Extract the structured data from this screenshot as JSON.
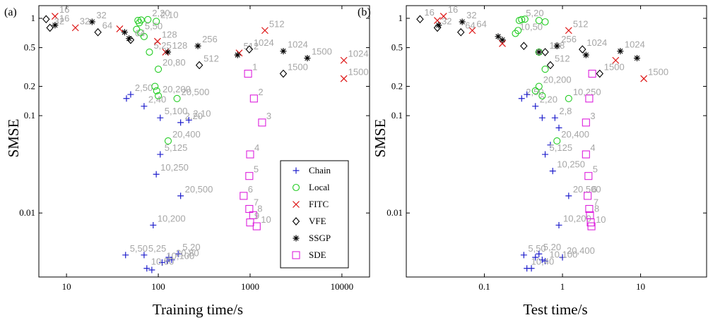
{
  "styles": {
    "Chain": {
      "marker": "plus",
      "color": "#1f1fcc",
      "legend": "Chain"
    },
    "Local": {
      "marker": "circle",
      "color": "#22cc22",
      "legend": "Local"
    },
    "FITC": {
      "marker": "cross",
      "color": "#dd1111",
      "legend": "FITC"
    },
    "VFE": {
      "marker": "diamond",
      "color": "#000000",
      "legend": "VFE"
    },
    "SSGP": {
      "marker": "asterisk",
      "color": "#000000",
      "legend": "SSGP"
    },
    "SDE": {
      "marker": "square",
      "color": "#dd22dd",
      "legend": "SDE"
    }
  },
  "legend_order": [
    "Chain",
    "Local",
    "FITC",
    "VFE",
    "SSGP",
    "SDE"
  ],
  "chart_data": [
    {
      "type": "scatter",
      "panel_label": "(a)",
      "xlabel": "Training time/s",
      "ylabel": "SMSE",
      "xscale": "log",
      "yscale": "log",
      "xlim": [
        5,
        20000
      ],
      "ylim": [
        0.0022,
        1.35
      ],
      "xticks": [
        {
          "v": 10,
          "t": "10"
        },
        {
          "v": 100,
          "t": "100"
        },
        {
          "v": 1000,
          "t": "1000"
        },
        {
          "v": 10000,
          "t": "10000"
        }
      ],
      "yticks": [
        {
          "v": 1,
          "t": "1"
        },
        {
          "v": 0.5,
          "t": "0.5"
        },
        {
          "v": 0.2,
          "t": "0.2"
        },
        {
          "v": 0.1,
          "t": "0.1"
        },
        {
          "v": 0.01,
          "t": "0.01"
        }
      ],
      "legend": true,
      "series": [
        {
          "name": "Chain",
          "points": [
            {
              "x": 45,
              "y": 0.15
            },
            {
              "x": 50,
              "y": 0.165,
              "label": "2,50"
            },
            {
              "x": 70,
              "y": 0.125,
              "label": "2,40"
            },
            {
              "x": 105,
              "y": 0.095,
              "label": "5,100"
            },
            {
              "x": 175,
              "y": 0.085,
              "label": "2,20"
            },
            {
              "x": 215,
              "y": 0.09,
              "label": "2,10"
            },
            {
              "x": 105,
              "y": 0.04,
              "label": "5,125"
            },
            {
              "x": 95,
              "y": 0.025,
              "label": "10,250"
            },
            {
              "x": 175,
              "y": 0.015,
              "label": "20,500"
            },
            {
              "x": 88,
              "y": 0.0075,
              "label": "10,200"
            },
            {
              "x": 44,
              "y": 0.0037,
              "label": "5,50"
            },
            {
              "x": 70,
              "y": 0.0037,
              "label": "5,25"
            },
            {
              "x": 165,
              "y": 0.0038,
              "label": "5,20"
            },
            {
              "x": 130,
              "y": 0.0035
            },
            {
              "x": 140,
              "y": 0.0033,
              "label": "20,80"
            },
            {
              "x": 125,
              "y": 0.0032
            },
            {
              "x": 110,
              "y": 0.0031,
              "label": "10,100"
            },
            {
              "x": 75,
              "y": 0.0027,
              "label": "10,50"
            },
            {
              "x": 85,
              "y": 0.0026
            }
          ]
        },
        {
          "name": "Local",
          "points": [
            {
              "x": 60,
              "y": 0.95
            },
            {
              "x": 65,
              "y": 0.96
            },
            {
              "x": 62,
              "y": 0.9
            },
            {
              "x": 77,
              "y": 0.97,
              "label": "2,20"
            },
            {
              "x": 95,
              "y": 0.93,
              "label": "2,10"
            },
            {
              "x": 58,
              "y": 0.77
            },
            {
              "x": 64,
              "y": 0.71,
              "label": "5,50"
            },
            {
              "x": 70,
              "y": 0.65
            },
            {
              "x": 80,
              "y": 0.45,
              "label": "5,25"
            },
            {
              "x": 100,
              "y": 0.3,
              "label": "20,80"
            },
            {
              "x": 92,
              "y": 0.2
            },
            {
              "x": 96,
              "y": 0.18
            },
            {
              "x": 100,
              "y": 0.16,
              "label": "20,200"
            },
            {
              "x": 160,
              "y": 0.15,
              "label": "20,500"
            },
            {
              "x": 128,
              "y": 0.055,
              "label": "20,400"
            }
          ]
        },
        {
          "name": "FITC",
          "points": [
            {
              "x": 7.5,
              "y": 1.05,
              "label": "16"
            },
            {
              "x": 12.5,
              "y": 0.8,
              "label": "32"
            },
            {
              "x": 38,
              "y": 0.78
            },
            {
              "x": 98,
              "y": 0.58,
              "label": "128"
            },
            {
              "x": 120,
              "y": 0.45
            },
            {
              "x": 760,
              "y": 0.44,
              "label": "512"
            },
            {
              "x": 1450,
              "y": 0.75,
              "label": "512"
            },
            {
              "x": 10500,
              "y": 0.37,
              "label": "1024"
            },
            {
              "x": 10500,
              "y": 0.24,
              "label": "1500"
            }
          ]
        },
        {
          "name": "VFE",
          "points": [
            {
              "x": 6,
              "y": 0.98
            },
            {
              "x": 6.6,
              "y": 0.8,
              "label": "32"
            },
            {
              "x": 22,
              "y": 0.72,
              "label": "64"
            },
            {
              "x": 50,
              "y": 0.6,
              "label": "64"
            },
            {
              "x": 280,
              "y": 0.33,
              "label": "512"
            },
            {
              "x": 980,
              "y": 0.48,
              "label": "1024"
            },
            {
              "x": 2300,
              "y": 0.27,
              "label": "1500"
            }
          ]
        },
        {
          "name": "SSGP",
          "points": [
            {
              "x": 7.5,
              "y": 0.85,
              "label": "16"
            },
            {
              "x": 19,
              "y": 0.92,
              "label": "32"
            },
            {
              "x": 43,
              "y": 0.72
            },
            {
              "x": 48,
              "y": 0.62
            },
            {
              "x": 127,
              "y": 0.45,
              "label": "128"
            },
            {
              "x": 270,
              "y": 0.52,
              "label": "256"
            },
            {
              "x": 730,
              "y": 0.42
            },
            {
              "x": 2300,
              "y": 0.46,
              "label": "1024"
            },
            {
              "x": 4200,
              "y": 0.39,
              "label": "1500"
            }
          ]
        },
        {
          "name": "SDE",
          "points": [
            {
              "x": 950,
              "y": 0.27,
              "label": "1"
            },
            {
              "x": 1100,
              "y": 0.15,
              "label": "2"
            },
            {
              "x": 1350,
              "y": 0.085,
              "label": "3"
            },
            {
              "x": 1000,
              "y": 0.04,
              "label": "4"
            },
            {
              "x": 980,
              "y": 0.024,
              "label": "5"
            },
            {
              "x": 850,
              "y": 0.015,
              "label": "6"
            },
            {
              "x": 980,
              "y": 0.011,
              "label": "7"
            },
            {
              "x": 1080,
              "y": 0.0095,
              "label": "8"
            },
            {
              "x": 1000,
              "y": 0.008,
              "label": "9"
            },
            {
              "x": 1180,
              "y": 0.0073,
              "label": "10"
            }
          ]
        }
      ]
    },
    {
      "type": "scatter",
      "panel_label": "(b)",
      "xlabel": "Test time/s",
      "ylabel": "SMSE",
      "xscale": "log",
      "yscale": "log",
      "xlim": [
        0.01,
        70
      ],
      "ylim": [
        0.0022,
        1.35
      ],
      "xticks": [
        {
          "v": 0.1,
          "t": "0.1"
        },
        {
          "v": 1,
          "t": "1"
        },
        {
          "v": 10,
          "t": "10"
        }
      ],
      "yticks": [
        {
          "v": 1,
          "t": "1"
        },
        {
          "v": 0.5,
          "t": "0.5"
        },
        {
          "v": 0.2,
          "t": "0.2"
        },
        {
          "v": 0.1,
          "t": "0.1"
        },
        {
          "v": 0.01,
          "t": "0.01"
        }
      ],
      "legend": false,
      "series": [
        {
          "name": "Chain",
          "points": [
            {
              "x": 0.3,
              "y": 0.15,
              "label": "2,50"
            },
            {
              "x": 0.35,
              "y": 0.165
            },
            {
              "x": 0.45,
              "y": 0.125,
              "label": "2,20"
            },
            {
              "x": 0.55,
              "y": 0.095
            },
            {
              "x": 0.8,
              "y": 0.095,
              "label": "2,8"
            },
            {
              "x": 0.9,
              "y": 0.075
            },
            {
              "x": 0.7,
              "y": 0.05
            },
            {
              "x": 0.6,
              "y": 0.04,
              "label": "5,125"
            },
            {
              "x": 0.75,
              "y": 0.027,
              "label": "10,250"
            },
            {
              "x": 1.2,
              "y": 0.015,
              "label": "20,500"
            },
            {
              "x": 0.9,
              "y": 0.0075,
              "label": "10,200"
            },
            {
              "x": 0.32,
              "y": 0.0037,
              "label": "5,50"
            },
            {
              "x": 0.5,
              "y": 0.0038,
              "label": "5,20"
            },
            {
              "x": 0.45,
              "y": 0.0035
            },
            {
              "x": 0.55,
              "y": 0.0033
            },
            {
              "x": 1.0,
              "y": 0.0035,
              "label": "20,400"
            },
            {
              "x": 0.6,
              "y": 0.0032,
              "label": "10,100"
            },
            {
              "x": 0.35,
              "y": 0.0027,
              "label": "10,40"
            },
            {
              "x": 0.4,
              "y": 0.0027
            }
          ]
        },
        {
          "name": "Local",
          "points": [
            {
              "x": 0.28,
              "y": 0.95
            },
            {
              "x": 0.3,
              "y": 0.97,
              "label": "5,20"
            },
            {
              "x": 0.33,
              "y": 0.98
            },
            {
              "x": 0.5,
              "y": 0.95
            },
            {
              "x": 0.6,
              "y": 0.92
            },
            {
              "x": 0.25,
              "y": 0.7,
              "label": "10,50"
            },
            {
              "x": 0.27,
              "y": 0.75
            },
            {
              "x": 0.5,
              "y": 0.45
            },
            {
              "x": 0.6,
              "y": 0.3
            },
            {
              "x": 0.5,
              "y": 0.2,
              "label": "20,200"
            },
            {
              "x": 0.45,
              "y": 0.18
            },
            {
              "x": 0.55,
              "y": 0.16
            },
            {
              "x": 1.2,
              "y": 0.15,
              "label": "10,250"
            },
            {
              "x": 0.85,
              "y": 0.055,
              "label": "20,400"
            }
          ]
        },
        {
          "name": "FITC",
          "points": [
            {
              "x": 0.025,
              "y": 0.95
            },
            {
              "x": 0.03,
              "y": 1.05,
              "label": "16"
            },
            {
              "x": 0.07,
              "y": 0.75,
              "label": "64"
            },
            {
              "x": 0.17,
              "y": 0.55
            },
            {
              "x": 1.2,
              "y": 0.75,
              "label": "512"
            },
            {
              "x": 4.8,
              "y": 0.37
            },
            {
              "x": 11,
              "y": 0.24,
              "label": "1500"
            }
          ]
        },
        {
          "name": "VFE",
          "points": [
            {
              "x": 0.015,
              "y": 0.98,
              "label": "16"
            },
            {
              "x": 0.025,
              "y": 0.8,
              "label": "32"
            },
            {
              "x": 0.05,
              "y": 0.72,
              "label": "64"
            },
            {
              "x": 0.32,
              "y": 0.52
            },
            {
              "x": 0.6,
              "y": 0.45,
              "label": "128"
            },
            {
              "x": 0.7,
              "y": 0.33,
              "label": "512"
            },
            {
              "x": 1.8,
              "y": 0.48,
              "label": "1024"
            },
            {
              "x": 3.0,
              "y": 0.27,
              "label": "1500"
            }
          ]
        },
        {
          "name": "SSGP",
          "points": [
            {
              "x": 0.026,
              "y": 0.85
            },
            {
              "x": 0.052,
              "y": 0.92,
              "label": "32"
            },
            {
              "x": 0.15,
              "y": 0.65
            },
            {
              "x": 0.17,
              "y": 0.6
            },
            {
              "x": 0.5,
              "y": 0.45
            },
            {
              "x": 0.85,
              "y": 0.52,
              "label": "256"
            },
            {
              "x": 2.0,
              "y": 0.42
            },
            {
              "x": 5.5,
              "y": 0.46,
              "label": "1024"
            },
            {
              "x": 9,
              "y": 0.39
            }
          ]
        },
        {
          "name": "SDE",
          "points": [
            {
              "x": 2.4,
              "y": 0.27
            },
            {
              "x": 2.2,
              "y": 0.15
            },
            {
              "x": 2.0,
              "y": 0.085,
              "label": "3"
            },
            {
              "x": 2.0,
              "y": 0.04,
              "label": "4"
            },
            {
              "x": 2.15,
              "y": 0.024,
              "label": "5"
            },
            {
              "x": 2.1,
              "y": 0.015,
              "label": "6"
            },
            {
              "x": 2.2,
              "y": 0.011,
              "label": "7"
            },
            {
              "x": 2.25,
              "y": 0.0095,
              "label": "8"
            },
            {
              "x": 2.3,
              "y": 0.008
            },
            {
              "x": 2.35,
              "y": 0.0073,
              "label": "10"
            }
          ]
        }
      ]
    }
  ]
}
